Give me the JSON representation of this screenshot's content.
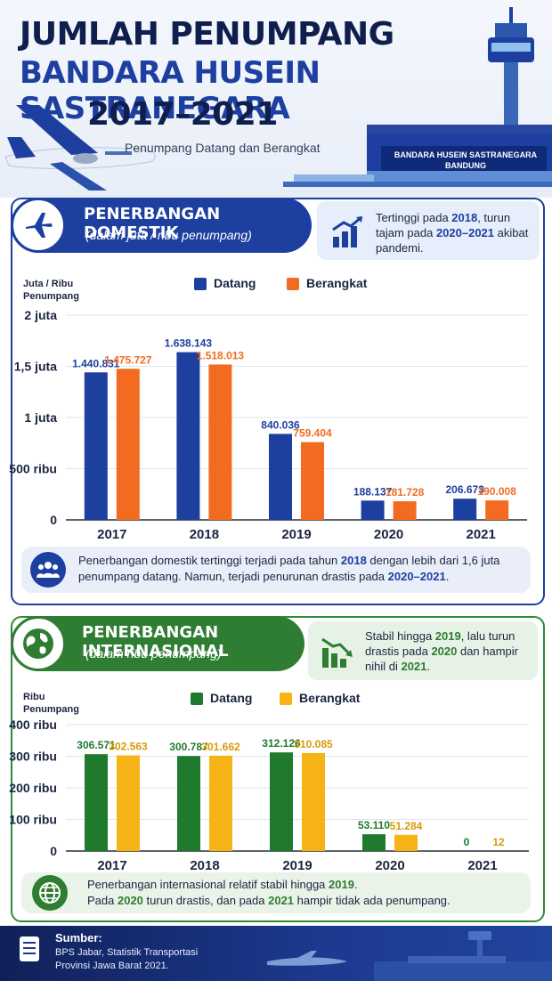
{
  "header": {
    "title_line1": "JUMLAH PENUMPANG",
    "title_line2": "BANDARA HUSEIN SASTRANEGARA",
    "title_line3": "2017–2021",
    "subtitle": "Penumpang Datang dan Berangkat",
    "building_sign_line1": "BANDARA HUSEIN SASTRANEGARA",
    "building_sign_line2": "BANDUNG"
  },
  "domestic": {
    "title": "PENERBANGAN DOMESTIK",
    "subtitle": "(dalam juta / ribu penumpang)",
    "note_prefix": "Tertinggi pada ",
    "note_year": "2018",
    "note_mid": ", turun tajam pada ",
    "note_range": "2020–2021",
    "note_suffix": " akibat pandemi.",
    "axis_title_line1": "Juta / Ribu",
    "axis_title_line2": "Penumpang",
    "footer_prefix": "Penerbangan domestik tertinggi terjadi pada tahun ",
    "footer_year": "2018",
    "footer_mid": " dengan lebih dari 1,6 juta penumpang datang. Namun, terjadi penurunan drastis pada ",
    "footer_range": "2020–2021",
    "footer_suffix": "."
  },
  "international": {
    "title": "PENERBANGAN INTERNASIONAL",
    "subtitle": "(dalam ribu penumpang)",
    "note_prefix": "Stabil hingga ",
    "note_year": "2019",
    "note_mid": ", lalu turun drastis pada ",
    "note_y1": "2020",
    "note_mid2": " dan hampir nihil di ",
    "note_y2": "2021",
    "note_suffix": ".",
    "axis_title_line1": "Ribu",
    "axis_title_line2": "Penumpang",
    "footer_l1_prefix": "Penerbangan internasional relatif stabil hingga ",
    "footer_l1_year": "2019",
    "footer_l1_suffix": ".",
    "footer_l2_a": "Pada ",
    "footer_l2_y1": "2020",
    "footer_l2_b": " turun drastis, dan pada ",
    "footer_l2_y2": "2021",
    "footer_l2_c": " hampir tidak ada penumpang."
  },
  "source": {
    "title": "Sumber:",
    "line1": "BPS Jabar, Statistik Transportasi",
    "line2": "Provinsi Jawa Barat 2021."
  },
  "colors": {
    "domestic_datang": "#1d3fa0",
    "domestic_berangkat": "#f26b21",
    "intl_datang": "#1f7a2e",
    "intl_berangkat": "#f6b316"
  },
  "icons": {
    "domestic": "airplane-icon",
    "domestic_note": "chart-up-icon",
    "domestic_footer": "people-icon",
    "international": "globe-icon",
    "international_note": "chart-down-icon",
    "international_footer": "globe-icon",
    "source": "document-icon"
  },
  "chart_data": [
    {
      "type": "bar",
      "categories": [
        "2017",
        "2018",
        "2019",
        "2020",
        "2021"
      ],
      "series": [
        {
          "name": "Datang",
          "values": [
            1440831,
            1638143,
            840036,
            188137,
            206673
          ],
          "labels": [
            "1.440.831",
            "1.638.143",
            "840.036",
            "188.137",
            "206.673"
          ]
        },
        {
          "name": "Berangkat",
          "values": [
            1475727,
            1518013,
            759404,
            181728,
            190008
          ],
          "labels": [
            "1.475.727",
            "1.518.013",
            "759.404",
            "181.728",
            "190.008"
          ]
        }
      ],
      "yticks": [
        "0",
        "500 ribu",
        "1 juta",
        "1,5 juta",
        "2 juta"
      ],
      "ylim": [
        0,
        2000000
      ],
      "ylabel": "Juta / Ribu Penumpang",
      "legend": "top-center",
      "grid": true
    },
    {
      "type": "bar",
      "categories": [
        "2017",
        "2018",
        "2019",
        "2020",
        "2021"
      ],
      "series": [
        {
          "name": "Datang",
          "values": [
            306571,
            300787,
            312126,
            53110,
            0
          ],
          "labels": [
            "306.571",
            "300.787",
            "312.126",
            "53.110",
            "0"
          ]
        },
        {
          "name": "Berangkat",
          "values": [
            302563,
            301662,
            310085,
            51284,
            12
          ],
          "labels": [
            "302.563",
            "301.662",
            "310.085",
            "51.284",
            "12"
          ]
        }
      ],
      "yticks": [
        "0",
        "100 ribu",
        "200 ribu",
        "300 ribu",
        "400 ribu"
      ],
      "ylim": [
        0,
        400000
      ],
      "ylabel": "Ribu Penumpang",
      "legend": "top-center",
      "grid": true
    }
  ]
}
